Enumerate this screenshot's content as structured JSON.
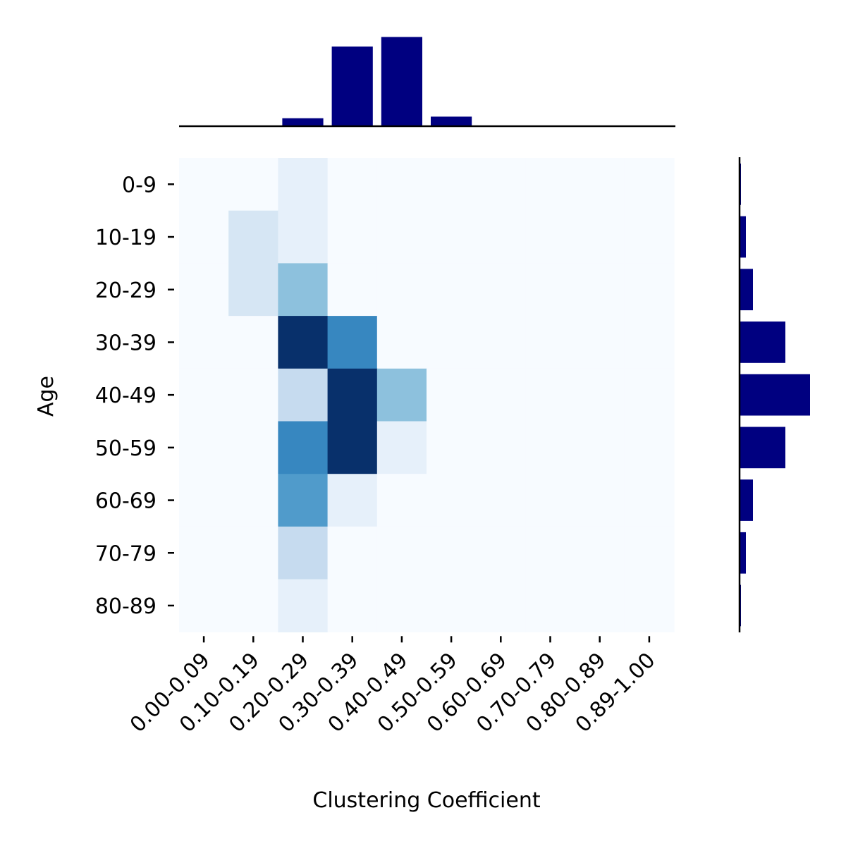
{
  "chart_data": {
    "type": "heatmap",
    "xlabel": "Clustering Coefficient",
    "ylabel": "Age",
    "x_categories": [
      "0.00-0.09",
      "0.10-0.19",
      "0.20-0.29",
      "0.30-0.39",
      "0.40-0.49",
      "0.50-0.59",
      "0.60-0.69",
      "0.70-0.79",
      "0.80-0.89",
      "0.89-1.00"
    ],
    "y_categories": [
      "0-9",
      "10-19",
      "20-29",
      "30-39",
      "40-49",
      "50-59",
      "60-69",
      "70-79",
      "80-89"
    ],
    "values": [
      [
        0,
        0,
        1,
        0,
        0,
        0,
        0,
        0,
        0,
        0
      ],
      [
        0,
        2,
        1,
        0,
        0,
        0,
        0,
        0,
        0,
        0
      ],
      [
        0,
        2,
        5,
        0,
        0,
        0,
        0,
        0,
        0,
        0
      ],
      [
        0,
        0,
        12,
        8,
        0,
        0,
        0,
        0,
        0,
        0
      ],
      [
        0,
        0,
        3,
        12,
        5,
        0,
        0,
        0,
        0,
        0
      ],
      [
        0,
        0,
        8,
        12,
        1,
        0,
        0,
        0,
        0,
        0
      ],
      [
        0,
        0,
        7,
        1,
        0,
        0,
        0,
        0,
        0,
        0
      ],
      [
        0,
        0,
        3,
        0,
        0,
        0,
        0,
        0,
        0,
        0
      ],
      [
        0,
        0,
        1,
        0,
        0,
        0,
        0,
        0,
        0,
        0
      ]
    ],
    "color_range": [
      0,
      12
    ],
    "colormap": "Blues",
    "top_marginal": {
      "type": "bar",
      "orientation": "vertical",
      "values": [
        0,
        0,
        0.1,
        1.0,
        1.12,
        0.12,
        0,
        0,
        0,
        0
      ],
      "color": "#000080"
    },
    "right_marginal": {
      "type": "bar",
      "orientation": "horizontal",
      "values": [
        0.02,
        0.09,
        0.19,
        0.65,
        1.0,
        0.65,
        0.19,
        0.09,
        0.02
      ],
      "color": "#000080"
    },
    "grid": false,
    "legend": "none"
  }
}
